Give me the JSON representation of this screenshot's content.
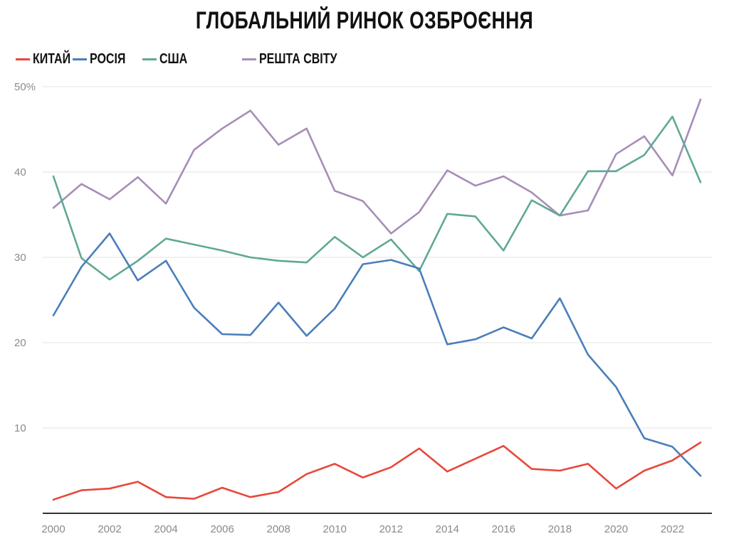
{
  "chart_data": {
    "type": "line",
    "title": "ГЛОБАЛЬНИЙ РИНОК ОЗБРОЄННЯ",
    "xlabel": "",
    "ylabel": "",
    "x": [
      2000,
      2001,
      2002,
      2003,
      2004,
      2005,
      2006,
      2007,
      2008,
      2009,
      2010,
      2011,
      2012,
      2013,
      2014,
      2015,
      2016,
      2017,
      2018,
      2019,
      2020,
      2021,
      2022,
      2023
    ],
    "x_tick_labels": [
      "2000",
      "2002",
      "2004",
      "2006",
      "2008",
      "2010",
      "2012",
      "2014",
      "2016",
      "2018",
      "2020",
      "2022"
    ],
    "y_ticks": [
      10,
      20,
      30,
      40,
      50
    ],
    "y_tick_labels": [
      "10",
      "20",
      "30",
      "40",
      "50%"
    ],
    "ylim": [
      0,
      50
    ],
    "grid": true,
    "legend_position": "top-left",
    "series": [
      {
        "name": "КИТАЙ",
        "color": "#e8473b",
        "values": [
          1.6,
          2.7,
          2.9,
          3.7,
          1.9,
          1.7,
          3.0,
          1.9,
          2.5,
          4.6,
          5.8,
          4.2,
          5.4,
          7.6,
          4.9,
          6.4,
          7.9,
          5.2,
          5.0,
          5.8,
          2.9,
          5.0,
          6.2,
          8.3
        ]
      },
      {
        "name": "РОСІЯ",
        "color": "#4a7ebb",
        "values": [
          23.2,
          28.9,
          32.8,
          27.3,
          29.6,
          24.1,
          21.0,
          20.9,
          24.7,
          20.8,
          24.0,
          29.2,
          29.7,
          28.7,
          19.8,
          20.4,
          21.8,
          20.5,
          25.2,
          18.6,
          14.8,
          8.8,
          7.8,
          4.4
        ]
      },
      {
        "name": "США",
        "color": "#5fa896",
        "values": [
          39.5,
          29.9,
          27.4,
          29.6,
          32.2,
          31.5,
          30.8,
          30.0,
          29.6,
          29.4,
          32.4,
          30.0,
          32.1,
          28.4,
          35.1,
          34.8,
          30.8,
          36.7,
          34.9,
          40.1,
          40.1,
          42.0,
          46.5,
          38.8
        ]
      },
      {
        "name": "РЕШТА СВІТУ",
        "color": "#a78db8",
        "values": [
          35.8,
          38.6,
          36.8,
          39.4,
          36.3,
          42.6,
          45.1,
          47.2,
          43.2,
          45.1,
          37.8,
          36.6,
          32.8,
          35.3,
          40.2,
          38.4,
          39.5,
          37.6,
          34.9,
          35.5,
          42.1,
          44.2,
          39.6,
          48.5
        ]
      }
    ]
  }
}
